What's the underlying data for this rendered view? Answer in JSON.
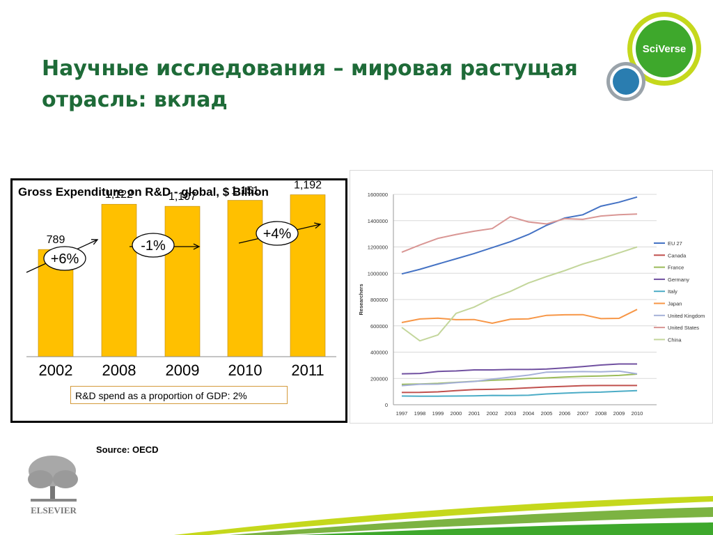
{
  "title": "Научные исследования – мировая растущая отрасль: вклад",
  "logo_text": "SciVerse",
  "publisher_logo_text": "ELSEVIER",
  "source": "Source:  OECD",
  "left_chart": {
    "title": "Gross Expenditure on R&D - global, $ Billion",
    "note": "R&D spend as a proportion of GDP: 2%",
    "changes": [
      "+6%",
      "-1%",
      "+4%"
    ]
  },
  "chart_data": [
    {
      "type": "bar",
      "title": "Gross Expenditure on R&D - global, $ Billion",
      "categories": [
        "2002",
        "2008",
        "2009",
        "2010",
        "2011"
      ],
      "values": [
        789,
        1122,
        1107,
        1151,
        1192
      ],
      "value_labels": [
        "789",
        "1,122",
        "1,107",
        "1,151",
        "1,192"
      ],
      "annotations": [
        "+6%",
        "-1%",
        "+4%"
      ],
      "grid": false
    },
    {
      "type": "line",
      "ylabel": "Researchers",
      "ylim": [
        0,
        1600000
      ],
      "yticks": [
        "0",
        "200000",
        "400000",
        "600000",
        "800000",
        "1000000",
        "1200000",
        "1400000",
        "1600000"
      ],
      "x": [
        "1997",
        "1998",
        "1999",
        "2000",
        "2001",
        "2002",
        "2003",
        "2004",
        "2005",
        "2006",
        "2007",
        "2008",
        "2009",
        "2010"
      ],
      "legend_position": "right",
      "grid": true,
      "series": [
        {
          "name": "EU 27",
          "color": "#4472c4",
          "values": [
            995000,
            1030000,
            1070000,
            1110000,
            1150000,
            1195000,
            1240000,
            1295000,
            1365000,
            1420000,
            1445000,
            1510000,
            1540000,
            1580000
          ]
        },
        {
          "name": "Canada",
          "color": "#c0504d",
          "values": [
            93000,
            94000,
            98000,
            107000,
            115000,
            117000,
            122000,
            128000,
            135000,
            140000,
            145000,
            146000,
            146000,
            146000
          ]
        },
        {
          "name": "France",
          "color": "#9bbb59",
          "values": [
            155000,
            158000,
            162000,
            170000,
            178000,
            186000,
            191000,
            200000,
            204000,
            211000,
            216000,
            219000,
            223000,
            233000
          ]
        },
        {
          "name": "Germany",
          "color": "#7050a0",
          "values": [
            235000,
            238000,
            253000,
            257000,
            265000,
            265000,
            268000,
            268000,
            272000,
            280000,
            290000,
            302000,
            310000,
            310000
          ]
        },
        {
          "name": "Italy",
          "color": "#4bacc6",
          "values": [
            66000,
            65000,
            65000,
            66000,
            68000,
            71000,
            70000,
            72000,
            82000,
            88000,
            93000,
            96000,
            102000,
            107000
          ]
        },
        {
          "name": "Japan",
          "color": "#f79646",
          "values": [
            625000,
            652000,
            658000,
            647000,
            648000,
            620000,
            650000,
            653000,
            680000,
            684000,
            685000,
            655000,
            657000,
            725000
          ]
        },
        {
          "name": "United Kingdom",
          "color": "#a5b0d8",
          "values": [
            145000,
            156000,
            157000,
            168000,
            177000,
            195000,
            210000,
            225000,
            248000,
            250000,
            252000,
            250000,
            256000,
            235000
          ]
        },
        {
          "name": "United States",
          "color": "#d99694",
          "values": [
            1160000,
            1215000,
            1265000,
            1295000,
            1320000,
            1340000,
            1430000,
            1390000,
            1375000,
            1415000,
            1410000,
            1435000,
            1445000,
            1450000
          ]
        },
        {
          "name": "China",
          "color": "#c3d69b",
          "values": [
            588000,
            486000,
            531000,
            695000,
            743000,
            811000,
            862000,
            926000,
            975000,
            1020000,
            1070000,
            1110000,
            1155000,
            1200000
          ]
        }
      ]
    }
  ]
}
